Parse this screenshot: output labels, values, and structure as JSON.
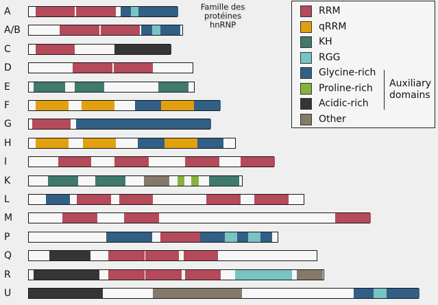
{
  "title_line1": "Famille des protéines",
  "title_line2": "hnRNP",
  "colors": {
    "RRM": "#b54a5a",
    "qRRM": "#e0a010",
    "KH": "#3f7a6d",
    "RGG": "#78c3c3",
    "Glycine-rich": "#315f86",
    "Proline-rich": "#86b33c",
    "Acidic-rich": "#353535",
    "Other": "#857a6a"
  },
  "legend": [
    {
      "label": "RRM",
      "key": "RRM"
    },
    {
      "label": "qRRM",
      "key": "qRRM"
    },
    {
      "label": "KH",
      "key": "KH"
    },
    {
      "label": "RGG",
      "key": "RGG"
    },
    {
      "label": "Glycine-rich",
      "key": "Glycine-rich"
    },
    {
      "label": "Proline-rich",
      "key": "Proline-rich"
    },
    {
      "label": "Acidic-rich",
      "key": "Acidic-rich"
    },
    {
      "label": "Other",
      "key": "Other"
    }
  ],
  "auxiliary_label_line1": "Auxiliary",
  "auxiliary_label_line2": "domains",
  "proteins": [
    {
      "name": "A",
      "length": 227,
      "domains": [
        [
          "RRM",
          10,
          70
        ],
        [
          "RRM",
          72,
          132
        ],
        [
          "Glycine-rich",
          140,
          155
        ],
        [
          "RGG",
          155,
          167
        ],
        [
          "Glycine-rich",
          167,
          227
        ]
      ]
    },
    {
      "name": "A/B",
      "length": 235,
      "domains": [
        [
          "RRM",
          47,
          107
        ],
        [
          "RRM",
          109,
          169
        ],
        [
          "Glycine-rich",
          171,
          187
        ],
        [
          "RGG",
          187,
          200
        ],
        [
          "Glycine-rich",
          200,
          230
        ]
      ]
    },
    {
      "name": "C",
      "length": 217,
      "domains": [
        [
          "RRM",
          10,
          70
        ],
        [
          "Acidic-rich",
          130,
          217
        ]
      ]
    },
    {
      "name": "D",
      "length": 251,
      "domains": [
        [
          "RRM",
          67,
          127
        ],
        [
          "RRM",
          129,
          189
        ]
      ]
    },
    {
      "name": "E",
      "length": 253,
      "domains": [
        [
          "KH",
          7,
          55
        ],
        [
          "KH",
          70,
          115
        ],
        [
          "KH",
          197,
          243
        ]
      ]
    },
    {
      "name": "F",
      "length": 292,
      "domains": [
        [
          "qRRM",
          10,
          60
        ],
        [
          "qRRM",
          80,
          130
        ],
        [
          "Glycine-rich",
          161,
          201
        ],
        [
          "qRRM",
          201,
          251
        ],
        [
          "Glycine-rich",
          251,
          292
        ]
      ]
    },
    {
      "name": "G",
      "length": 277,
      "domains": [
        [
          "RRM",
          5,
          64
        ],
        [
          "Glycine-rich",
          72,
          277
        ]
      ]
    },
    {
      "name": "H",
      "length": 316,
      "domains": [
        [
          "qRRM",
          10,
          60
        ],
        [
          "qRRM",
          82,
          132
        ],
        [
          "Glycine-rich",
          166,
          206
        ],
        [
          "qRRM",
          206,
          256
        ],
        [
          "Glycine-rich",
          256,
          296
        ]
      ]
    },
    {
      "name": "I",
      "length": 374,
      "domains": [
        [
          "RRM",
          45,
          95
        ],
        [
          "RRM",
          130,
          182
        ],
        [
          "RRM",
          238,
          290
        ],
        [
          "RRM",
          322,
          374
        ]
      ]
    },
    {
      "name": "K",
      "length": 326,
      "domains": [
        [
          "KH",
          29,
          75
        ],
        [
          "KH",
          101,
          147
        ],
        [
          "Other",
          175,
          214
        ],
        [
          "Proline-rich",
          226,
          236
        ],
        [
          "Proline-rich",
          247,
          258
        ],
        [
          "KH",
          274,
          320
        ]
      ]
    },
    {
      "name": "L",
      "length": 420,
      "domains": [
        [
          "Glycine-rich",
          26,
          62
        ],
        [
          "RRM",
          73,
          125
        ],
        [
          "RRM",
          137,
          189
        ],
        [
          "RRM",
          270,
          322
        ],
        [
          "RRM",
          343,
          395
        ]
      ]
    },
    {
      "name": "M",
      "length": 520,
      "domains": [
        [
          "RRM",
          51,
          104
        ],
        [
          "RRM",
          145,
          198
        ],
        [
          "RRM",
          466,
          520
        ]
      ]
    },
    {
      "name": "P",
      "length": 380,
      "domains": [
        [
          "Glycine-rich",
          118,
          187
        ],
        [
          "RRM",
          200,
          260
        ],
        [
          "Glycine-rich",
          260,
          298
        ],
        [
          "RGG",
          298,
          317
        ],
        [
          "Glycine-rich",
          317,
          333
        ],
        [
          "RGG",
          333,
          352
        ],
        [
          "Glycine-rich",
          352,
          370
        ]
      ]
    },
    {
      "name": "Q",
      "length": 440,
      "domains": [
        [
          "Acidic-rich",
          31,
          94
        ],
        [
          "RRM",
          121,
          176
        ],
        [
          "RRM",
          176,
          228
        ],
        [
          "RRM",
          235,
          288
        ]
      ]
    },
    {
      "name": "R",
      "length": 450,
      "domains": [
        [
          "Acidic-rich",
          7,
          107
        ],
        [
          "RRM",
          121,
          176
        ],
        [
          "RRM",
          176,
          232
        ],
        [
          "RRM",
          238,
          292
        ],
        [
          "RGG",
          314,
          400
        ],
        [
          "Other",
          407,
          447
        ]
      ]
    },
    {
      "name": "U",
      "length": 594,
      "domains": [
        [
          "Acidic-rich",
          0,
          113
        ],
        [
          "Other",
          189,
          324
        ],
        [
          "Glycine-rich",
          494,
          524
        ],
        [
          "RGG",
          524,
          544
        ],
        [
          "Glycine-rich",
          544,
          594
        ]
      ]
    }
  ]
}
